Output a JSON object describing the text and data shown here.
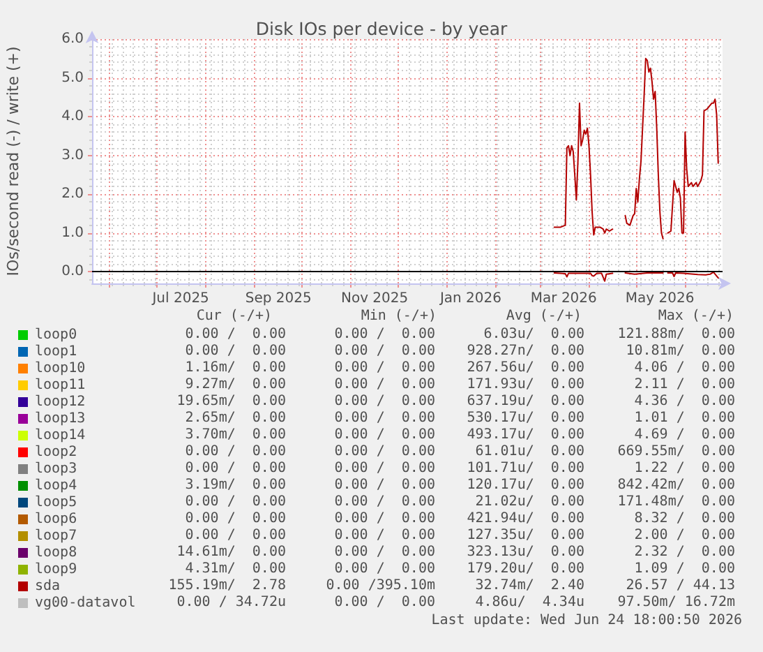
{
  "chart_data": {
    "type": "line",
    "title": "Disk IOs per device - by year",
    "ylabel": "IOs/second read (-) / write (+)",
    "xlim": [
      "2025-05-20T18:00",
      "2026-06-24T18:00"
    ],
    "xticks": [
      {
        "value": "2025-06-01",
        "label": null
      },
      {
        "value": "2025-07-01",
        "label": null
      },
      {
        "value": "2025-07-16",
        "label": "Jul 2025"
      },
      {
        "value": "2025-08-01",
        "label": null
      },
      {
        "value": "2025-09-01",
        "label": null
      },
      {
        "value": "2025-09-16",
        "label": "Sep 2025"
      },
      {
        "value": "2025-10-01",
        "label": null
      },
      {
        "value": "2025-11-01",
        "label": null
      },
      {
        "value": "2025-11-16",
        "label": "Nov 2025"
      },
      {
        "value": "2025-12-01",
        "label": null
      },
      {
        "value": "2026-01-01",
        "label": null
      },
      {
        "value": "2026-01-16",
        "label": "Jan 2026"
      },
      {
        "value": "2026-02-01",
        "label": null
      },
      {
        "value": "2026-03-01",
        "label": null
      },
      {
        "value": "2026-03-16",
        "label": "Mar 2026"
      },
      {
        "value": "2026-04-01",
        "label": null
      },
      {
        "value": "2026-05-01",
        "label": null
      },
      {
        "value": "2026-05-16",
        "label": "May 2026"
      },
      {
        "value": "2026-06-01",
        "label": null
      }
    ],
    "ylim": [
      -0.3,
      6.0
    ],
    "yticks": [
      {
        "value": 0,
        "label": "0.0"
      },
      {
        "value": 1,
        "label": "1.0"
      },
      {
        "value": 2,
        "label": "2.0"
      },
      {
        "value": 3,
        "label": "3.0"
      },
      {
        "value": 4,
        "label": "4.0"
      },
      {
        "value": 5,
        "label": "5.0"
      },
      {
        "value": 6,
        "label": "6.0"
      }
    ],
    "grid": true,
    "legend": "bottom",
    "marker": "none",
    "ref_lines": [
      {
        "axis": "y",
        "value": 0,
        "color": "#000000"
      }
    ],
    "series": [
      {
        "name": "loop0",
        "color": "#00cc00"
      },
      {
        "name": "loop1",
        "color": "#0066b3"
      },
      {
        "name": "loop10",
        "color": "#ff8000"
      },
      {
        "name": "loop11",
        "color": "#ffcc00"
      },
      {
        "name": "loop12",
        "color": "#330099"
      },
      {
        "name": "loop13",
        "color": "#990099"
      },
      {
        "name": "loop14",
        "color": "#ccff00"
      },
      {
        "name": "loop2",
        "color": "#ff0000"
      },
      {
        "name": "loop3",
        "color": "#808080"
      },
      {
        "name": "loop4",
        "color": "#008f00"
      },
      {
        "name": "loop5",
        "color": "#00487d"
      },
      {
        "name": "loop6",
        "color": "#b35a00"
      },
      {
        "name": "loop7",
        "color": "#b38f00"
      },
      {
        "name": "loop8",
        "color": "#6b006b"
      },
      {
        "name": "loop9",
        "color": "#8fb300"
      },
      {
        "name": "sda",
        "color": "#b30000",
        "x": [
          "2026-03-10",
          "2026-03-12",
          "2026-03-14",
          "2026-03-17",
          "2026-03-18",
          "2026-03-19",
          "2026-03-20",
          "2026-03-21",
          "2026-03-22",
          "2026-03-23",
          "2026-03-24",
          "2026-03-25",
          "2026-03-26",
          "2026-03-27",
          "2026-03-28",
          "2026-03-29",
          "2026-03-30",
          "2026-03-31",
          "2026-04-01",
          "2026-04-02",
          "2026-04-03",
          "2026-04-04",
          "2026-04-05",
          "2026-04-08",
          "2026-04-10",
          "2026-04-11",
          "2026-04-12",
          "2026-04-14",
          "2026-04-16",
          "2026-04-20",
          "2026-04-24",
          "2026-04-25",
          "2026-04-27",
          "2026-04-29",
          "2026-04-30",
          "2026-05-01",
          "2026-05-02",
          "2026-05-03",
          "2026-05-04",
          "2026-05-05",
          "2026-05-06",
          "2026-05-07",
          "2026-05-08",
          "2026-05-09",
          "2026-05-10",
          "2026-05-11",
          "2026-05-12",
          "2026-05-13",
          "2026-05-14",
          "2026-05-15",
          "2026-05-16",
          "2026-05-17",
          "2026-05-18",
          "2026-05-19",
          "2026-05-21",
          "2026-05-23",
          "2026-05-25",
          "2026-05-26",
          "2026-05-27",
          "2026-05-28",
          "2026-05-29",
          "2026-05-30",
          "2026-05-31",
          "2026-06-01",
          "2026-06-02",
          "2026-06-03",
          "2026-06-05",
          "2026-06-06",
          "2026-06-08",
          "2026-06-09",
          "2026-06-11",
          "2026-06-12",
          "2026-06-13",
          "2026-06-15",
          "2026-06-16",
          "2026-06-18",
          "2026-06-19",
          "2026-06-20",
          "2026-06-21",
          "2026-06-22"
        ],
        "values": [
          1.15,
          1.15,
          1.15,
          1.2,
          3.2,
          3.25,
          3.0,
          3.25,
          3.1,
          2.5,
          1.85,
          2.85,
          4.35,
          3.25,
          3.4,
          3.65,
          3.55,
          3.7,
          3.25,
          2.5,
          1.55,
          0.95,
          1.15,
          1.15,
          1.1,
          1.0,
          1.1,
          1.05,
          1.1,
          null,
          1.45,
          1.25,
          1.2,
          1.45,
          1.5,
          2.15,
          1.8,
          2.4,
          2.85,
          3.7,
          4.55,
          5.5,
          5.45,
          5.15,
          5.25,
          4.9,
          4.45,
          4.65,
          3.7,
          2.5,
          1.55,
          1.0,
          0.85,
          null,
          1.0,
          1.05,
          2.35,
          2.2,
          2.05,
          2.15,
          1.9,
          1.0,
          1.0,
          3.6,
          2.65,
          2.2,
          2.3,
          2.2,
          2.3,
          2.2,
          2.35,
          2.5,
          4.15,
          4.2,
          4.25,
          4.35,
          4.35,
          4.45,
          4.05,
          2.8
        ]
      },
      {
        "color": "#b30000",
        "x": [
          "2026-03-10",
          "2026-03-17",
          "2026-03-18",
          "2026-03-19",
          "2026-03-24",
          "2026-04-02",
          "2026-04-03",
          "2026-04-04",
          "2026-04-06",
          "2026-04-09",
          "2026-04-11",
          "2026-04-12",
          "2026-04-16",
          "2026-04-20",
          "2026-04-24",
          "2026-04-30",
          "2026-05-08",
          "2026-05-18",
          "2026-05-19",
          "2026-05-21",
          "2026-05-24",
          "2026-05-25",
          "2026-05-26",
          "2026-05-31",
          "2026-06-09",
          "2026-06-14",
          "2026-06-17",
          "2026-06-19",
          "2026-06-20",
          "2026-06-22"
        ],
        "values": [
          -0.03,
          -0.05,
          -0.13,
          -0.04,
          -0.04,
          -0.04,
          -0.1,
          -0.11,
          -0.04,
          -0.04,
          -0.24,
          -0.06,
          -0.04,
          null,
          -0.03,
          -0.06,
          -0.03,
          -0.03,
          null,
          -0.03,
          -0.03,
          -0.12,
          -0.03,
          -0.04,
          -0.07,
          -0.08,
          -0.06,
          -0.01,
          -0.06,
          -0.16
        ]
      },
      {
        "name": "vg00-datavol",
        "color": "#bebebe"
      }
    ],
    "annotations": [
      "Cur (-/+)",
      "Min (-/+)",
      "Avg (-/+)",
      "Max (-/+)",
      "0.00 /  0.00",
      "0.00 /  0.00",
      "6.03u/  0.00",
      "121.88m/  0.00",
      "0.00 /  0.00",
      "0.00 /  0.00",
      "928.27n/  0.00",
      "10.81m/  0.00",
      "1.16m/  0.00",
      "0.00 /  0.00",
      "267.56u/  0.00",
      "4.06 /  0.00",
      "9.27m/  0.00",
      "0.00 /  0.00",
      "171.93u/  0.00",
      "2.11 /  0.00",
      "19.65m/  0.00",
      "0.00 /  0.00",
      "637.19u/  0.00",
      "4.36 /  0.00",
      "2.65m/  0.00",
      "0.00 /  0.00",
      "530.17u/  0.00",
      "1.01 /  0.00",
      "3.70m/  0.00",
      "0.00 /  0.00",
      "493.17u/  0.00",
      "4.69 /  0.00",
      "0.00 /  0.00",
      "0.00 /  0.00",
      "61.01u/  0.00",
      "669.55m/  0.00",
      "0.00 /  0.00",
      "0.00 /  0.00",
      "101.71u/  0.00",
      "1.22 /  0.00",
      "3.19m/  0.00",
      "0.00 /  0.00",
      "120.17u/  0.00",
      "842.42m/  0.00",
      "0.00 /  0.00",
      "0.00 /  0.00",
      "21.02u/  0.00",
      "171.48m/  0.00",
      "0.00 /  0.00",
      "0.00 /  0.00",
      "421.94u/  0.00",
      "8.32 /  0.00",
      "0.00 /  0.00",
      "0.00 /  0.00",
      "127.35u/  0.00",
      "2.00 /  0.00",
      "14.61m/  0.00",
      "0.00 /  0.00",
      "323.13u/  0.00",
      "2.32 /  0.00",
      "4.31m/  0.00",
      "0.00 /  0.00",
      "179.20u/  0.00",
      "1.09 /  0.00",
      "155.19m/  2.78",
      "0.00 /395.10m",
      "32.74m/  2.40",
      "26.57 / 44.13",
      "0.00 / 34.72u",
      "0.00 /  0.00",
      "4.86u/  4.34u",
      "97.50m/ 16.72m",
      "Last update: Wed Jun 24 18:00:50 2026"
    ]
  }
}
